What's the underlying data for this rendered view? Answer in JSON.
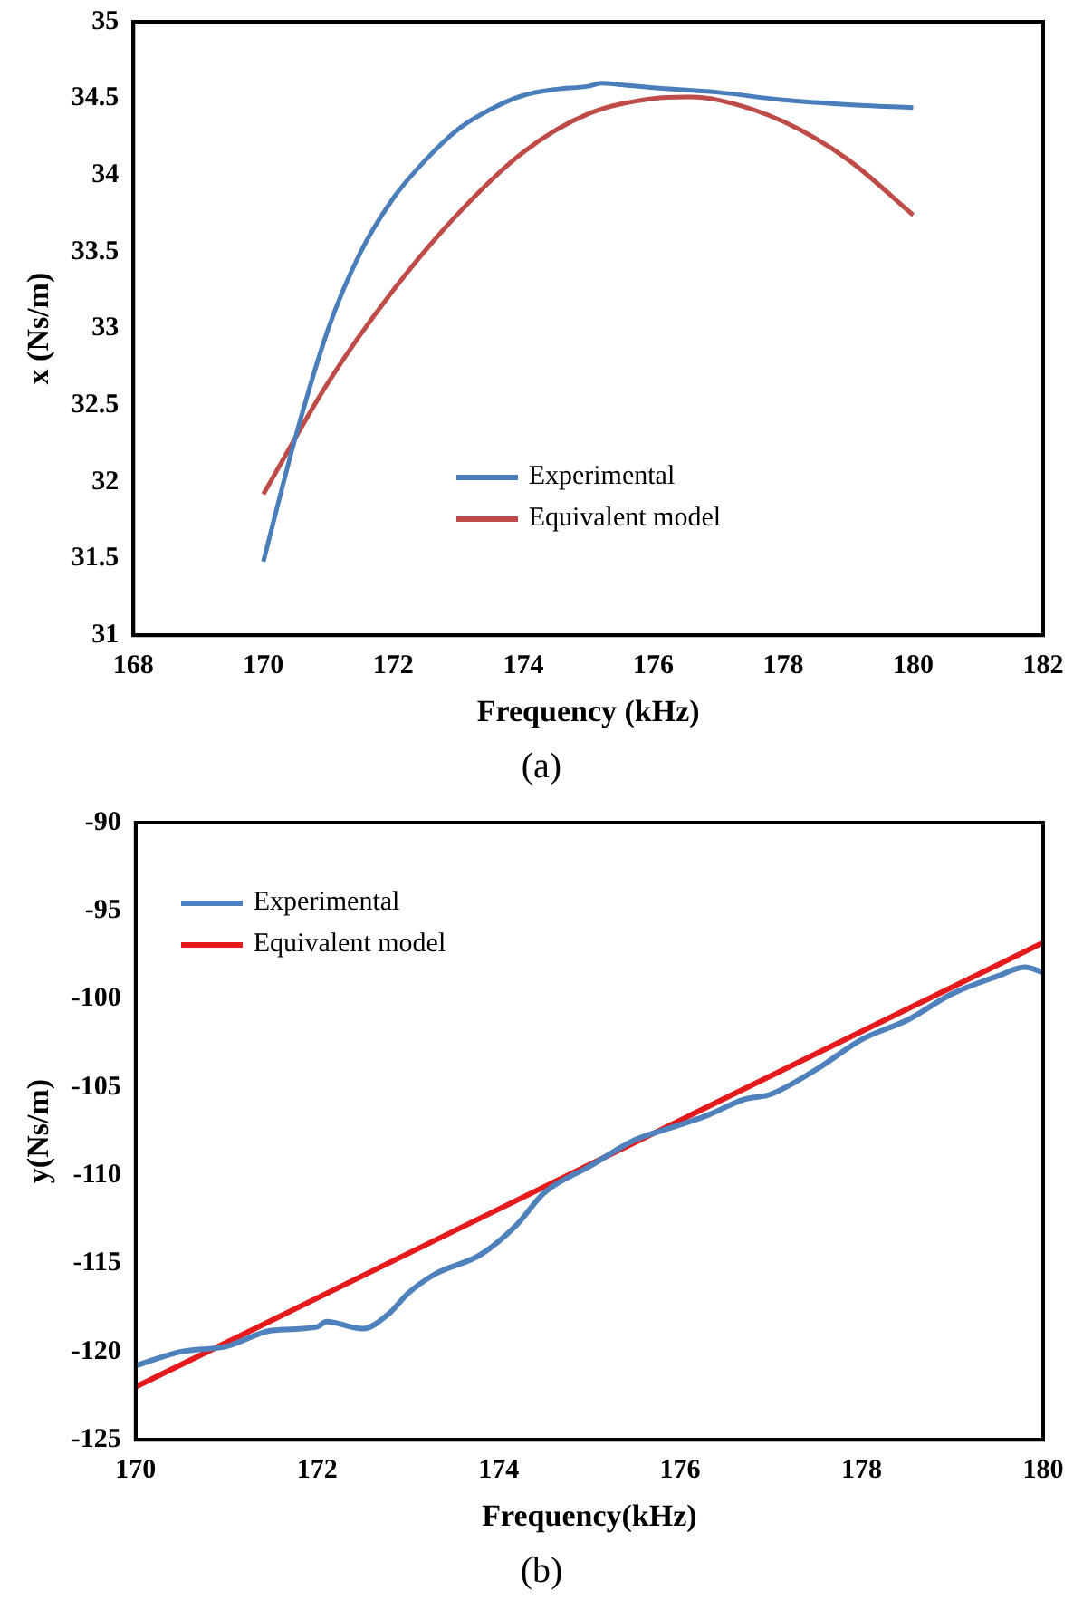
{
  "chart_data": [
    {
      "type": "line",
      "xlabel": "Frequency (kHz)",
      "ylabel": "x (Ns/m)",
      "xlim": [
        168,
        182
      ],
      "xticks": [
        168,
        170,
        172,
        174,
        176,
        178,
        180,
        182
      ],
      "ylim": [
        31,
        35
      ],
      "yticks": [
        31,
        31.5,
        32,
        32.5,
        33,
        33.5,
        34,
        34.5,
        35
      ],
      "grid": false,
      "legend": "bottom",
      "annotations": [
        "(a)"
      ],
      "series": [
        {
          "name": "Experimental",
          "color": "#4a7ebb",
          "x": [
            170,
            170.5,
            171,
            171.5,
            172,
            172.5,
            173,
            173.5,
            174,
            174.5,
            175,
            175.2,
            175.5,
            176,
            177,
            178,
            179,
            180
          ],
          "values": [
            31.48,
            32.3,
            33.0,
            33.5,
            33.85,
            34.1,
            34.3,
            34.43,
            34.52,
            34.56,
            34.58,
            34.6,
            34.59,
            34.57,
            34.54,
            34.49,
            34.46,
            34.44
          ]
        },
        {
          "name": "Equivalent model",
          "color": "#be4b48",
          "x": [
            170,
            171,
            172,
            173,
            174,
            175,
            176,
            176.5,
            177,
            178,
            179,
            180
          ],
          "values": [
            31.92,
            32.65,
            33.25,
            33.75,
            34.15,
            34.4,
            34.5,
            34.51,
            34.49,
            34.35,
            34.1,
            33.74
          ]
        }
      ]
    },
    {
      "type": "line",
      "xlabel": "Frequency(kHz)",
      "ylabel": "y(Ns/m)",
      "xlim": [
        170,
        180
      ],
      "xticks": [
        170,
        172,
        174,
        176,
        178,
        180
      ],
      "ylim": [
        -125,
        -90
      ],
      "yticks": [
        -125,
        -120,
        -115,
        -110,
        -105,
        -100,
        -95,
        -90
      ],
      "grid": false,
      "legend": "top left",
      "annotations": [
        "(b)"
      ],
      "series": [
        {
          "name": "Experimental",
          "color": "#4f81bd",
          "x": [
            170,
            170.5,
            171,
            171.5,
            172,
            172.1,
            172.5,
            172.8,
            173,
            173.3,
            173.8,
            174.2,
            174.5,
            175,
            175.5,
            175.9,
            176.3,
            176.7,
            177,
            177.5,
            178,
            178.5,
            179,
            179.5,
            179.8,
            180
          ],
          "values": [
            -120.8,
            -120,
            -119.7,
            -118.8,
            -118.6,
            -118.3,
            -118.7,
            -117.8,
            -116.7,
            -115.6,
            -114.5,
            -112.8,
            -111,
            -109.5,
            -108,
            -107.3,
            -106.6,
            -105.7,
            -105.4,
            -104,
            -102.3,
            -101.2,
            -99.7,
            -98.7,
            -98.2,
            -98.5
          ]
        },
        {
          "name": "Equivalent model",
          "color": "#e41a1c",
          "x": [
            170,
            180
          ],
          "values": [
            -122,
            -96.8
          ]
        }
      ]
    }
  ]
}
